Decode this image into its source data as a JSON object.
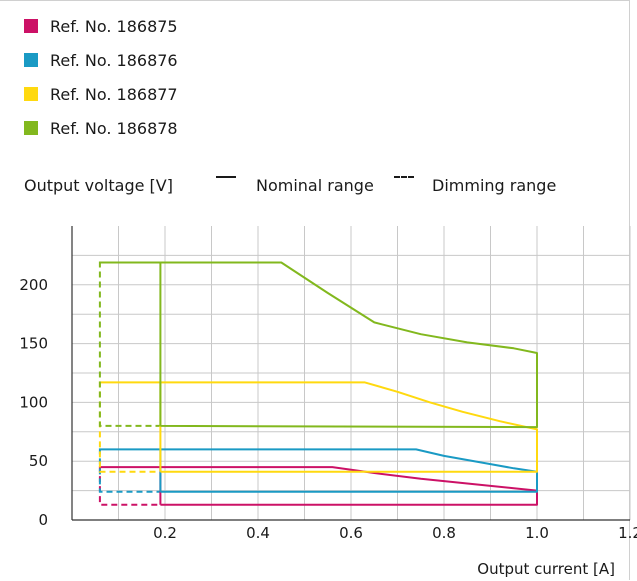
{
  "legend": [
    {
      "label": "Ref. No. 186875",
      "color": "#cc1166"
    },
    {
      "label": "Ref. No. 186876",
      "color": "#1a9ac4"
    },
    {
      "label": "Ref. No. 186877",
      "color": "#ffd90f"
    },
    {
      "label": "Ref. No. 186878",
      "color": "#82b81e"
    }
  ],
  "labels": {
    "ylabel": "Output voltage [V]",
    "nominal": "Nominal range",
    "dimming": "Dimming range",
    "xlabel": "Output current [A]"
  },
  "chart_data": {
    "type": "line",
    "xlabel": "Output current [A]",
    "ylabel": "Output voltage [V]",
    "xlim": [
      0,
      1.2
    ],
    "ylim": [
      0,
      250
    ],
    "xticks": [
      0.2,
      0.4,
      0.6,
      0.8,
      1.0,
      1.2
    ],
    "xtick_labels": [
      "0.2",
      "0.4",
      "0.6",
      "0.8",
      "1.0",
      "1.2"
    ],
    "yticks": [
      0,
      50,
      100,
      150,
      200
    ],
    "ytick_labels": [
      "0",
      "50",
      "100",
      "150",
      "200"
    ],
    "grid": true,
    "legend_position": "top-left",
    "dimming_min_current": 0.06,
    "series": [
      {
        "name": "Ref. No. 186875",
        "color": "#cc1166",
        "nominal": [
          [
            0.19,
            13
          ],
          [
            0.19,
            45
          ],
          [
            0.56,
            45
          ],
          [
            0.65,
            40
          ],
          [
            0.75,
            35
          ],
          [
            0.85,
            31
          ],
          [
            0.95,
            27
          ],
          [
            1.0,
            25
          ],
          [
            1.0,
            13
          ],
          [
            0.19,
            13
          ]
        ],
        "dimming": [
          [
            0.06,
            45
          ],
          [
            0.19,
            45
          ],
          [
            0.06,
            45
          ],
          [
            0.06,
            13
          ],
          [
            0.19,
            13
          ]
        ]
      },
      {
        "name": "Ref. No. 186876",
        "color": "#1a9ac4",
        "nominal": [
          [
            0.19,
            24
          ],
          [
            0.19,
            60
          ],
          [
            0.74,
            60
          ],
          [
            0.8,
            54.5
          ],
          [
            0.85,
            51
          ],
          [
            0.9,
            47.5
          ],
          [
            0.95,
            44
          ],
          [
            1.0,
            41
          ],
          [
            1.0,
            24
          ],
          [
            0.19,
            24
          ]
        ],
        "dimming": [
          [
            0.06,
            60
          ],
          [
            0.19,
            60
          ],
          [
            0.06,
            60
          ],
          [
            0.06,
            24
          ],
          [
            0.19,
            24
          ]
        ]
      },
      {
        "name": "Ref. No. 186877",
        "color": "#ffd90f",
        "nominal": [
          [
            0.19,
            41
          ],
          [
            0.19,
            117
          ],
          [
            0.63,
            117
          ],
          [
            0.7,
            109
          ],
          [
            0.77,
            100
          ],
          [
            0.84,
            92
          ],
          [
            0.92,
            84
          ],
          [
            1.0,
            77
          ],
          [
            1.0,
            41
          ],
          [
            0.19,
            41
          ]
        ],
        "dimming": [
          [
            0.06,
            117
          ],
          [
            0.19,
            117
          ],
          [
            0.06,
            117
          ],
          [
            0.06,
            41
          ],
          [
            0.19,
            41
          ]
        ]
      },
      {
        "name": "Ref. No. 186878",
        "color": "#82b81e",
        "nominal": [
          [
            0.19,
            80
          ],
          [
            0.19,
            219
          ],
          [
            0.45,
            219
          ],
          [
            0.55,
            193
          ],
          [
            0.65,
            168
          ],
          [
            0.75,
            158
          ],
          [
            0.85,
            151
          ],
          [
            0.95,
            146
          ],
          [
            1.0,
            142
          ],
          [
            1.0,
            79
          ],
          [
            0.19,
            80
          ]
        ],
        "dimming": [
          [
            0.06,
            219
          ],
          [
            0.19,
            219
          ],
          [
            0.06,
            219
          ],
          [
            0.06,
            80
          ],
          [
            0.19,
            80
          ]
        ]
      }
    ]
  }
}
